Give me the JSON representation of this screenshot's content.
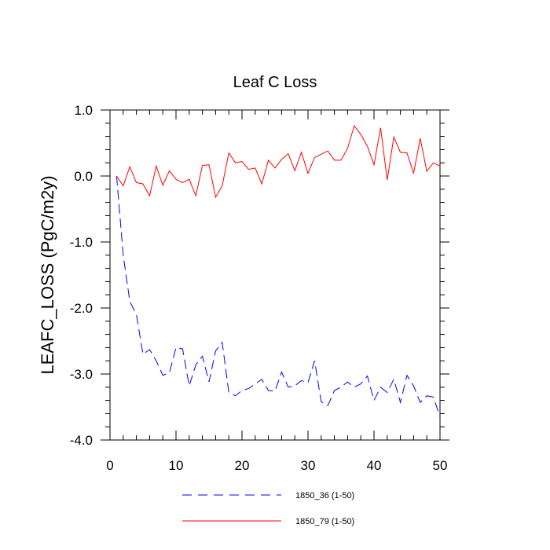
{
  "chart_data": {
    "type": "line",
    "title": "Leaf C Loss",
    "xlabel": "",
    "ylabel": "LEAFC_LOSS  (PgC/m2y)",
    "xlim": [
      0,
      50
    ],
    "ylim": [
      -4.0,
      1.0
    ],
    "xticks": [
      0,
      10,
      20,
      30,
      40,
      50
    ],
    "xtick_labels": [
      "0",
      "10",
      "20",
      "30",
      "40",
      "50"
    ],
    "yticks": [
      -4.0,
      -3.0,
      -2.0,
      -1.0,
      0.0,
      1.0
    ],
    "ytick_labels": [
      "-4.0",
      "-3.0",
      "-2.0",
      "-1.0",
      "0.0",
      "1.0"
    ],
    "grid": false,
    "legend_position": "bottom",
    "x": [
      1,
      2,
      3,
      4,
      5,
      6,
      7,
      8,
      9,
      10,
      11,
      12,
      13,
      14,
      15,
      16,
      17,
      18,
      19,
      20,
      21,
      22,
      23,
      24,
      25,
      26,
      27,
      28,
      29,
      30,
      31,
      32,
      33,
      34,
      35,
      36,
      37,
      38,
      39,
      40,
      41,
      42,
      43,
      44,
      45,
      46,
      47,
      48,
      49,
      50
    ],
    "series": [
      {
        "name": "1850_36 (1-50)",
        "color": "#0000ff",
        "dash": "dashed",
        "values": [
          0.0,
          -1.2,
          -1.9,
          -2.1,
          -2.7,
          -2.63,
          -2.8,
          -3.02,
          -2.98,
          -2.6,
          -2.62,
          -3.18,
          -2.86,
          -2.73,
          -3.12,
          -2.65,
          -2.52,
          -3.28,
          -3.33,
          -3.25,
          -3.22,
          -3.15,
          -3.08,
          -3.25,
          -3.26,
          -2.97,
          -3.2,
          -3.18,
          -3.1,
          -3.13,
          -2.8,
          -3.42,
          -3.48,
          -3.25,
          -3.2,
          -3.12,
          -3.2,
          -3.15,
          -3.03,
          -3.4,
          -3.2,
          -3.28,
          -3.08,
          -3.43,
          -3.02,
          -3.18,
          -3.43,
          -3.33,
          -3.35,
          -3.65
        ]
      },
      {
        "name": "1850_79 (1-50)",
        "color": "#ff0000",
        "dash": "solid",
        "values": [
          0.0,
          -0.15,
          0.14,
          -0.1,
          -0.12,
          -0.3,
          0.15,
          -0.14,
          0.08,
          -0.05,
          -0.1,
          -0.05,
          -0.3,
          0.16,
          0.17,
          -0.32,
          -0.15,
          0.35,
          0.2,
          0.22,
          0.1,
          0.12,
          -0.12,
          0.24,
          0.12,
          0.25,
          0.34,
          0.08,
          0.36,
          0.04,
          0.28,
          0.33,
          0.38,
          0.24,
          0.24,
          0.42,
          0.76,
          0.63,
          0.45,
          0.17,
          0.73,
          -0.06,
          0.59,
          0.36,
          0.35,
          0.04,
          0.57,
          0.07,
          0.2,
          0.15
        ]
      }
    ]
  }
}
